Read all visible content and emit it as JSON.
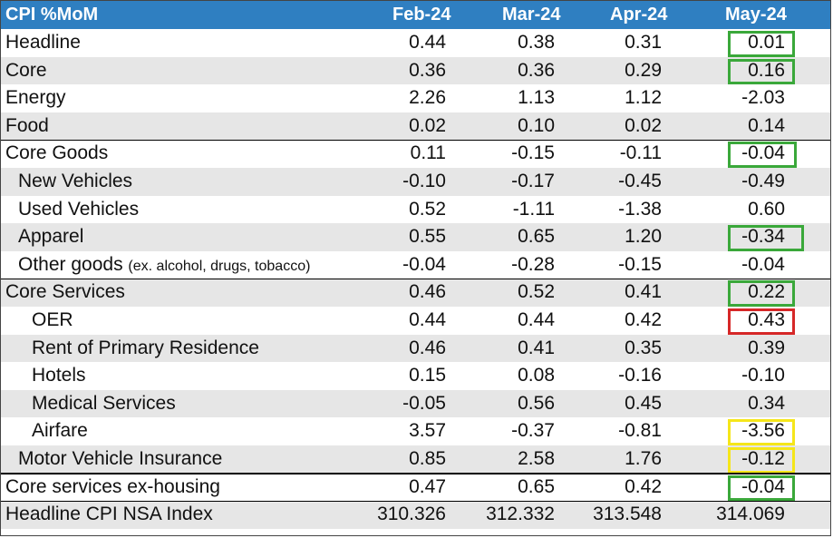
{
  "chart_data": {
    "type": "table",
    "title": "CPI %MoM",
    "columns": [
      "Feb-24",
      "Mar-24",
      "Apr-24",
      "May-24"
    ],
    "rows": [
      {
        "label": "Headline",
        "note": "",
        "indent": 0,
        "values": [
          "0.44",
          "0.38",
          "0.31",
          "0.01"
        ],
        "highlight": "green"
      },
      {
        "label": "Core",
        "note": "",
        "indent": 0,
        "values": [
          "0.36",
          "0.36",
          "0.29",
          "0.16"
        ],
        "highlight": "green"
      },
      {
        "label": "Energy",
        "note": "",
        "indent": 0,
        "values": [
          "2.26",
          "1.13",
          "1.12",
          "-2.03"
        ],
        "highlight": ""
      },
      {
        "label": "Food",
        "note": "",
        "indent": 0,
        "values": [
          "0.02",
          "0.10",
          "0.02",
          "0.14"
        ],
        "highlight": ""
      },
      {
        "label": "Core Goods",
        "note": "",
        "indent": 0,
        "values": [
          "0.11",
          "-0.15",
          "-0.11",
          "-0.04"
        ],
        "highlight": "green"
      },
      {
        "label": "New Vehicles",
        "note": "",
        "indent": 1,
        "values": [
          "-0.10",
          "-0.17",
          "-0.45",
          "-0.49"
        ],
        "highlight": ""
      },
      {
        "label": "Used Vehicles",
        "note": "",
        "indent": 1,
        "values": [
          "0.52",
          "-1.11",
          "-1.38",
          "0.60"
        ],
        "highlight": ""
      },
      {
        "label": "Apparel",
        "note": "",
        "indent": 1,
        "values": [
          "0.55",
          "0.65",
          "1.20",
          "-0.34"
        ],
        "highlight": "green"
      },
      {
        "label": "Other goods",
        "note": "(ex. alcohol, drugs, tobacco)",
        "indent": 1,
        "values": [
          "-0.04",
          "-0.28",
          "-0.15",
          "-0.04"
        ],
        "highlight": ""
      },
      {
        "label": "Core Services",
        "note": "",
        "indent": 0,
        "values": [
          "0.46",
          "0.52",
          "0.41",
          "0.22"
        ],
        "highlight": "green"
      },
      {
        "label": "OER",
        "note": "",
        "indent": 2,
        "values": [
          "0.44",
          "0.44",
          "0.42",
          "0.43"
        ],
        "highlight": "red"
      },
      {
        "label": "Rent of Primary Residence",
        "note": "",
        "indent": 2,
        "values": [
          "0.46",
          "0.41",
          "0.35",
          "0.39"
        ],
        "highlight": ""
      },
      {
        "label": "Hotels",
        "note": "",
        "indent": 2,
        "values": [
          "0.15",
          "0.08",
          "-0.16",
          "-0.10"
        ],
        "highlight": ""
      },
      {
        "label": "Medical Services",
        "note": "",
        "indent": 2,
        "values": [
          "-0.05",
          "0.56",
          "0.45",
          "0.34"
        ],
        "highlight": ""
      },
      {
        "label": "Airfare",
        "note": "",
        "indent": 2,
        "values": [
          "3.57",
          "-0.37",
          "-0.81",
          "-3.56"
        ],
        "highlight": "yellow"
      },
      {
        "label": "Motor Vehicle Insurance",
        "note": "",
        "indent": 1,
        "values": [
          "0.85",
          "2.58",
          "1.76",
          "-0.12"
        ],
        "highlight": "yellow"
      },
      {
        "label": "Core services ex-housing",
        "note": "",
        "indent": 0,
        "values": [
          "0.47",
          "0.65",
          "0.42",
          "-0.04"
        ],
        "highlight": "green"
      },
      {
        "label": "Headline CPI NSA Index",
        "note": "",
        "indent": 0,
        "values": [
          "310.326",
          "312.332",
          "313.548",
          "314.069"
        ],
        "highlight": ""
      }
    ],
    "colors": {
      "header_bg": "#2f7fc1",
      "header_text": "#ffffff",
      "row_shade": "#e6e6e6",
      "green": "#3aa83a",
      "red": "#d62828",
      "yellow": "#f5e61a"
    }
  }
}
